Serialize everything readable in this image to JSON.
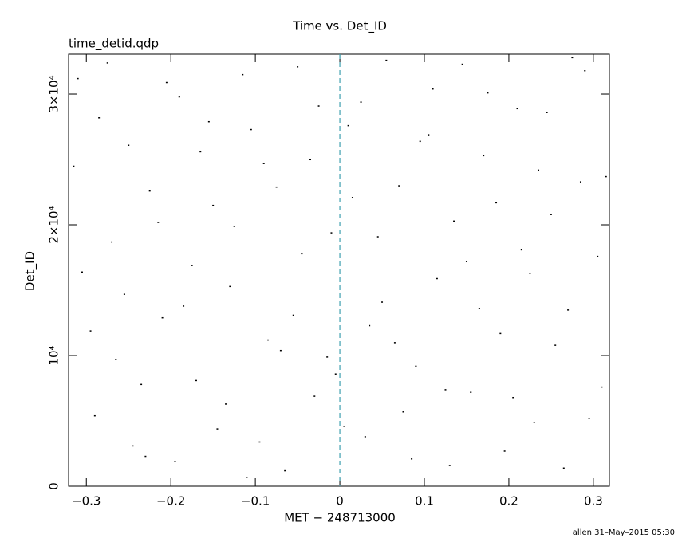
{
  "chart_data": {
    "type": "scatter",
    "title": "Time vs. Det_ID",
    "subtitle": "time_detid.qdp",
    "x_label": "MET − 248713000",
    "y_label": "Det_ID",
    "footer": "allen 31–May–2015 05:30",
    "color": "#000000",
    "xlim": [
      -0.321,
      0.319
    ],
    "ylim": [
      0,
      33050
    ],
    "xticks": [
      {
        "value": -0.3,
        "label": "−0.3"
      },
      {
        "value": -0.2,
        "label": "−0.2"
      },
      {
        "value": -0.1,
        "label": "−0.1"
      },
      0,
      0.1,
      0.2,
      0.3
    ],
    "yticks": [
      0,
      {
        "value": 10000,
        "label": "10⁴"
      },
      {
        "value": 20000,
        "label": "2×10⁴"
      },
      {
        "value": 30000,
        "label": "3×10⁴"
      }
    ],
    "vline": {
      "x": 0,
      "color": "#3fa0b0"
    },
    "x": [
      -0.31,
      -0.29,
      -0.27,
      -0.25,
      -0.23,
      -0.21,
      -0.19,
      -0.17,
      -0.15,
      -0.13,
      -0.11,
      -0.09,
      -0.07,
      -0.05,
      -0.03,
      -0.01,
      0.01,
      0.03,
      0.05,
      0.07,
      0.09,
      0.11,
      0.13,
      0.15,
      0.17,
      0.19,
      0.21,
      0.23,
      0.25,
      0.27,
      0.29,
      0.31,
      -0.305,
      -0.285,
      -0.265,
      -0.245,
      -0.225,
      -0.205,
      -0.185,
      -0.165,
      -0.145,
      -0.125,
      -0.105,
      -0.085,
      -0.065,
      -0.045,
      -0.025,
      -0.005,
      0.015,
      0.035,
      0.055,
      0.075,
      0.095,
      0.115,
      0.135,
      0.155,
      0.175,
      0.195,
      0.215,
      0.235,
      0.255,
      0.275,
      0.295,
      0.315,
      -0.315,
      -0.295,
      -0.275,
      -0.255,
      -0.235,
      -0.215,
      -0.195,
      -0.175,
      -0.155,
      -0.135,
      -0.115,
      -0.095,
      -0.075,
      -0.055,
      -0.035,
      -0.015,
      0.005,
      0.025,
      0.045,
      0.065,
      0.085,
      0.105,
      0.125,
      0.145,
      0.165,
      0.185,
      0.205,
      0.225,
      0.245,
      0.265,
      0.285,
      0.305
    ],
    "values": [
      31200,
      5400,
      18700,
      26100,
      2300,
      12900,
      29800,
      8100,
      21500,
      15300,
      700,
      24700,
      10400,
      32100,
      6900,
      19400,
      27600,
      3800,
      14100,
      23000,
      9200,
      30400,
      1600,
      17200,
      25300,
      11700,
      28900,
      4900,
      20800,
      13500,
      31800,
      7600,
      16400,
      28200,
      9700,
      3100,
      22600,
      30900,
      13800,
      25600,
      4400,
      19900,
      27300,
      11200,
      1200,
      17800,
      29100,
      8600,
      22100,
      12300,
      32600,
      5700,
      26400,
      15900,
      20300,
      7200,
      30100,
      2700,
      18100,
      24200,
      10800,
      32800,
      5200,
      23700,
      24500,
      11900,
      32400,
      14700,
      7800,
      20200,
      1900,
      16900,
      27900,
      6300,
      31500,
      3400,
      22900,
      13100,
      25000,
      9900,
      4600,
      29400,
      19100,
      11000,
      2100,
      26900,
      7400,
      32300,
      13600,
      21700,
      6800,
      16300,
      28600,
      1400,
      23300,
      17600
    ]
  }
}
